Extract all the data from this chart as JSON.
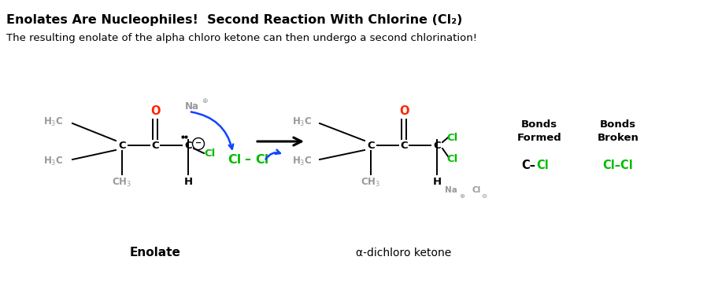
{
  "title_bold": "Enolates Are Nucleophiles!  Second Reaction With Chlorine (Cl₂)",
  "subtitle": "The resulting enolate of the alpha chloro ketone can then undergo a second chlorination!",
  "bg_color": "#ffffff",
  "black": "#000000",
  "gray": "#999999",
  "red": "#ff2200",
  "green": "#00bb00",
  "blue": "#1144ff",
  "enolate_label": "Enolate",
  "product_label": "α-dichloro ketone"
}
